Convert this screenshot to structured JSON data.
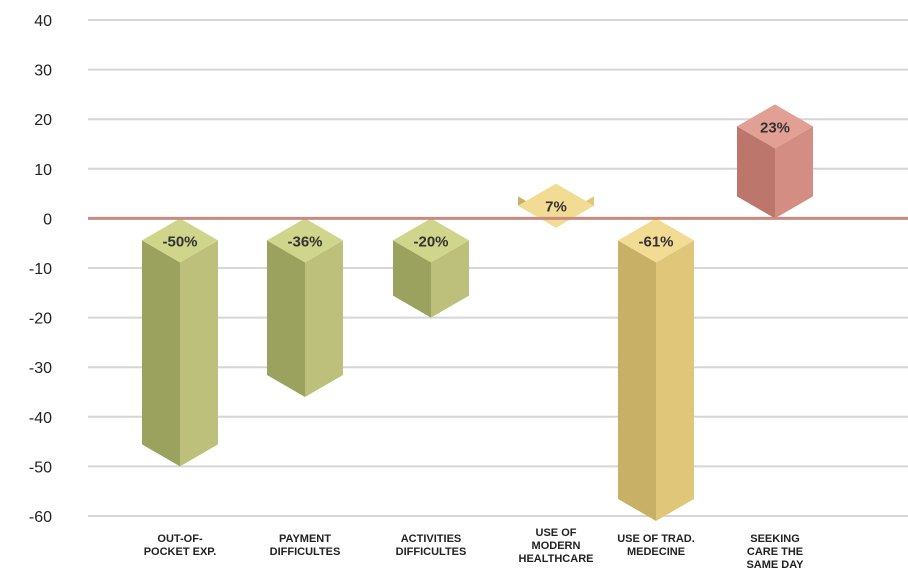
{
  "chart_data": {
    "type": "bar",
    "title": "",
    "xlabel": "",
    "ylabel": "",
    "ylim": [
      -60,
      40
    ],
    "yticks": [
      40,
      30,
      20,
      10,
      0,
      -10,
      -20,
      -30,
      -40,
      -50,
      -60
    ],
    "grid": true,
    "categories": [
      [
        "OUT-OF-",
        "POCKET EXP."
      ],
      [
        "PAYMENT",
        "DIFFICULTES"
      ],
      [
        "ACTIVITIES",
        "DIFFICULTES"
      ],
      [
        "USE OF",
        "MODERN",
        "HEALTHCARE"
      ],
      [
        "USE OF TRAD.",
        "MEDECINE"
      ],
      [
        "SEEKING",
        "CARE THE",
        "SAME DAY"
      ]
    ],
    "values": [
      -50,
      -36,
      -20,
      7,
      -61,
      23
    ],
    "data_labels": [
      "-50%",
      "-36%",
      "-20%",
      "7%",
      "-61%",
      "23%"
    ],
    "bar_colors": [
      {
        "front": "#9aa25e",
        "side": "#bdc07a",
        "top": "#cfd58a"
      },
      {
        "front": "#9aa25e",
        "side": "#bdc07a",
        "top": "#cfd58a"
      },
      {
        "front": "#9aa25e",
        "side": "#bdc07a",
        "top": "#cfd58a"
      },
      {
        "front": "#c8b066",
        "side": "#e0c679",
        "top": "#f2dc94"
      },
      {
        "front": "#c8b066",
        "side": "#e0c679",
        "top": "#f2dc94"
      },
      {
        "front": "#bc766c",
        "side": "#d38d82",
        "top": "#e2a095"
      }
    ],
    "zero_line_color": "#c98a80",
    "grid_color": "#d6d6d6"
  }
}
